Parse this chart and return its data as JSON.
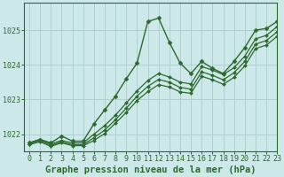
{
  "title": "Graphe pression niveau de la mer (hPa)",
  "bg_color": "#cce8e8",
  "grid_color": "#b0d0d0",
  "line_color": "#2d6a2d",
  "xlim": [
    -0.5,
    23
  ],
  "ylim": [
    1021.5,
    1025.8
  ],
  "yticks": [
    1022,
    1023,
    1024,
    1025
  ],
  "xticks": [
    0,
    1,
    2,
    3,
    4,
    5,
    6,
    7,
    8,
    9,
    10,
    11,
    12,
    13,
    14,
    15,
    16,
    17,
    18,
    19,
    20,
    21,
    22,
    23
  ],
  "series": [
    {
      "x": [
        0,
        1,
        2,
        3,
        4,
        5,
        6,
        7,
        8,
        9,
        10,
        11,
        12,
        13,
        14,
        15,
        16,
        17,
        18,
        19,
        20,
        21,
        22,
        23
      ],
      "y": [
        1021.75,
        1021.85,
        1021.75,
        1021.95,
        1021.8,
        1021.8,
        1022.3,
        1022.7,
        1023.1,
        1023.6,
        1024.05,
        1025.25,
        1025.35,
        1024.65,
        1024.05,
        1023.75,
        1024.1,
        1023.9,
        1023.75,
        1024.1,
        1024.5,
        1025.0,
        1025.05,
        1025.25
      ],
      "marker": "D",
      "markersize": 2.5,
      "linewidth": 1.0,
      "linestyle": "-",
      "zorder": 5
    },
    {
      "x": [
        0,
        1,
        2,
        3,
        4,
        5,
        6,
        7,
        8,
        9,
        10,
        11,
        12,
        13,
        14,
        15,
        16,
        17,
        18,
        19,
        20,
        21,
        22,
        23
      ],
      "y": [
        1021.75,
        1021.85,
        1021.72,
        1021.82,
        1021.75,
        1021.75,
        1022.0,
        1022.25,
        1022.55,
        1022.9,
        1023.25,
        1023.55,
        1023.75,
        1023.65,
        1023.5,
        1023.45,
        1023.95,
        1023.85,
        1023.72,
        1023.92,
        1024.25,
        1024.75,
        1024.85,
        1025.1
      ],
      "marker": "D",
      "markersize": 2.0,
      "linewidth": 0.9,
      "linestyle": "-",
      "zorder": 3
    },
    {
      "x": [
        0,
        1,
        2,
        3,
        4,
        5,
        6,
        7,
        8,
        9,
        10,
        11,
        12,
        13,
        14,
        15,
        16,
        17,
        18,
        19,
        20,
        21,
        22,
        23
      ],
      "y": [
        1021.72,
        1021.82,
        1021.68,
        1021.78,
        1021.7,
        1021.7,
        1021.9,
        1022.12,
        1022.42,
        1022.75,
        1023.1,
        1023.38,
        1023.58,
        1023.5,
        1023.35,
        1023.3,
        1023.8,
        1023.7,
        1023.57,
        1023.77,
        1024.1,
        1024.6,
        1024.7,
        1024.95
      ],
      "marker": "D",
      "markersize": 2.0,
      "linewidth": 0.9,
      "linestyle": "-",
      "zorder": 3
    },
    {
      "x": [
        0,
        1,
        2,
        3,
        4,
        5,
        6,
        7,
        8,
        9,
        10,
        11,
        12,
        13,
        14,
        15,
        16,
        17,
        18,
        19,
        20,
        21,
        22,
        23
      ],
      "y": [
        1021.7,
        1021.78,
        1021.65,
        1021.75,
        1021.67,
        1021.67,
        1021.82,
        1022.02,
        1022.32,
        1022.63,
        1022.97,
        1023.23,
        1023.43,
        1023.36,
        1023.22,
        1023.18,
        1023.67,
        1023.57,
        1023.44,
        1023.64,
        1023.97,
        1024.47,
        1024.57,
        1024.82
      ],
      "marker": "D",
      "markersize": 2.0,
      "linewidth": 0.9,
      "linestyle": "-",
      "zorder": 3
    }
  ],
  "xlabel_fontsize": 7.5,
  "tick_fontsize": 6.0,
  "tick_color": "#2d6a2d",
  "axis_color": "#2d6a2d"
}
